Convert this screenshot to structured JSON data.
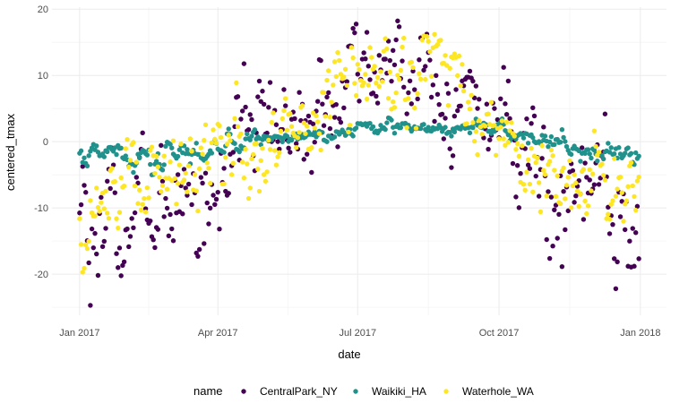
{
  "chart_data": {
    "type": "scatter",
    "title": "",
    "xlabel": "date",
    "ylabel": "centered_tmax",
    "x_type": "date",
    "xlim": [
      "2016-12-14",
      "2018-01-18"
    ],
    "ylim": [
      -26.2,
      20.3
    ],
    "x_ticks": [
      {
        "value": "2017-01-01",
        "label": "Jan 2017"
      },
      {
        "value": "2017-04-01",
        "label": "Apr 2017"
      },
      {
        "value": "2017-07-01",
        "label": "Jul 2017"
      },
      {
        "value": "2017-10-01",
        "label": "Oct 2017"
      },
      {
        "value": "2018-01-01",
        "label": "Jan 2018"
      }
    ],
    "y_ticks": [
      {
        "value": 20,
        "label": "20"
      },
      {
        "value": 10,
        "label": "10"
      },
      {
        "value": 0,
        "label": "0"
      },
      {
        "value": -10,
        "label": "-10"
      },
      {
        "value": -20,
        "label": "-20"
      }
    ],
    "grid": true,
    "legend": {
      "title": "name",
      "position": "bottom"
    },
    "series": [
      {
        "name": "CentralPark_NY",
        "color": "#440154",
        "anchors": [
          [
            "2017-01-01",
            -8
          ],
          [
            "2017-01-08",
            -21
          ],
          [
            "2017-01-15",
            -7
          ],
          [
            "2017-01-22",
            -10
          ],
          [
            "2017-02-01",
            -12
          ],
          [
            "2017-02-10",
            -8
          ],
          [
            "2017-02-20",
            -14
          ],
          [
            "2017-03-01",
            -5
          ],
          [
            "2017-03-10",
            -10
          ],
          [
            "2017-03-20",
            -12
          ],
          [
            "2017-04-01",
            -7
          ],
          [
            "2017-04-10",
            -3
          ],
          [
            "2017-04-20",
            2
          ],
          [
            "2017-05-01",
            3
          ],
          [
            "2017-05-15",
            2
          ],
          [
            "2017-06-01",
            4
          ],
          [
            "2017-06-15",
            6
          ],
          [
            "2017-07-01",
            9
          ],
          [
            "2017-07-15",
            10
          ],
          [
            "2017-08-01",
            10
          ],
          [
            "2017-08-15",
            8
          ],
          [
            "2017-09-01",
            7
          ],
          [
            "2017-09-15",
            6
          ],
          [
            "2017-10-01",
            3
          ],
          [
            "2017-10-15",
            0
          ],
          [
            "2017-11-01",
            -4
          ],
          [
            "2017-11-15",
            -7
          ],
          [
            "2017-12-01",
            -8
          ],
          [
            "2017-12-15",
            -12
          ],
          [
            "2017-12-31",
            -22
          ]
        ]
      },
      {
        "name": "Waikiki_HA",
        "color": "#21918c",
        "anchors": [
          [
            "2017-01-01",
            -2.5
          ],
          [
            "2017-01-15",
            -2
          ],
          [
            "2017-02-01",
            -2.5
          ],
          [
            "2017-02-15",
            -3
          ],
          [
            "2017-03-01",
            -2
          ],
          [
            "2017-03-15",
            -1.5
          ],
          [
            "2017-04-01",
            0
          ],
          [
            "2017-05-01",
            0.5
          ],
          [
            "2017-06-01",
            1
          ],
          [
            "2017-07-01",
            2
          ],
          [
            "2017-08-01",
            2
          ],
          [
            "2017-09-01",
            2
          ],
          [
            "2017-10-01",
            1.5
          ],
          [
            "2017-10-15",
            1
          ],
          [
            "2017-11-01",
            0
          ],
          [
            "2017-11-15",
            -1
          ],
          [
            "2017-12-01",
            -1.5
          ],
          [
            "2017-12-15",
            -2
          ],
          [
            "2017-12-31",
            -3
          ]
        ]
      },
      {
        "name": "Waterhole_WA",
        "color": "#fde725",
        "anchors": [
          [
            "2017-01-01",
            -14
          ],
          [
            "2017-01-15",
            -9
          ],
          [
            "2017-02-01",
            -8
          ],
          [
            "2017-02-15",
            -8
          ],
          [
            "2017-03-01",
            -4
          ],
          [
            "2017-03-15",
            -5
          ],
          [
            "2017-04-01",
            -6
          ],
          [
            "2017-04-15",
            -4
          ],
          [
            "2017-05-01",
            -2
          ],
          [
            "2017-05-15",
            0
          ],
          [
            "2017-06-01",
            3
          ],
          [
            "2017-06-15",
            6
          ],
          [
            "2017-07-01",
            9
          ],
          [
            "2017-07-15",
            11
          ],
          [
            "2017-08-01",
            12
          ],
          [
            "2017-08-15",
            11
          ],
          [
            "2017-09-01",
            9
          ],
          [
            "2017-09-15",
            6
          ],
          [
            "2017-10-01",
            0
          ],
          [
            "2017-10-15",
            -3
          ],
          [
            "2017-11-01",
            -5
          ],
          [
            "2017-11-15",
            -7
          ],
          [
            "2017-12-01",
            -5
          ],
          [
            "2017-12-15",
            -9
          ],
          [
            "2017-12-31",
            -7
          ]
        ]
      }
    ]
  }
}
